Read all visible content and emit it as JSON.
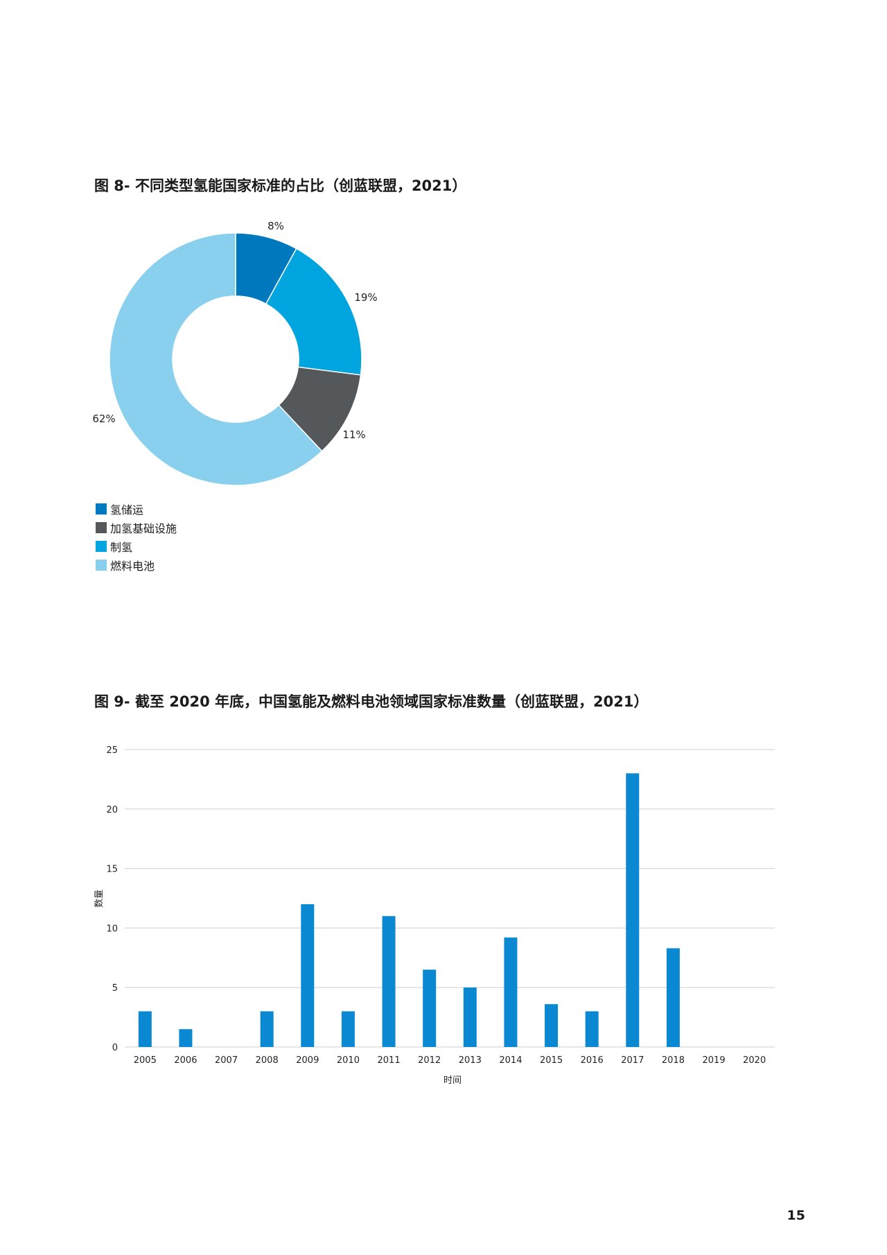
{
  "page_number": "15",
  "figures": {
    "fig8_title": "图 8- 不同类型氢能国家标准的占比（创蓝联盟，2021）",
    "fig9_title": "图 9- 截至 2020 年底，中国氢能及燃料电池领域国家标准数量（创蓝联盟，2021）"
  },
  "chart_data": [
    {
      "type": "pie",
      "donut": true,
      "title": "图 8- 不同类型氢能国家标准的占比（创蓝联盟，2021）",
      "slices": [
        {
          "name": "氢储运",
          "value": 8,
          "label": "8%",
          "color": "#0078BE"
        },
        {
          "name": "制氢",
          "value": 19,
          "label": "19%",
          "color": "#00A5DF"
        },
        {
          "name": "加氢基础设施",
          "value": 11,
          "label": "11%",
          "color": "#54585B"
        },
        {
          "name": "燃料电池",
          "value": 62,
          "label": "62%",
          "color": "#88D0EE"
        }
      ],
      "legend": [
        {
          "name": "氢储运",
          "color": "#0078BE"
        },
        {
          "name": "加氢基础设施",
          "color": "#54585B"
        },
        {
          "name": "制氢",
          "color": "#00A5DF"
        },
        {
          "name": "燃料电池",
          "color": "#88D0EE"
        }
      ],
      "legend_position": "bottom-left"
    },
    {
      "type": "bar",
      "title": "图 9- 截至 2020 年底，中国氢能及燃料电池领域国家标准数量（创蓝联盟，2021）",
      "xlabel": "时间",
      "ylabel": "数量",
      "categories": [
        "2005",
        "2006",
        "2007",
        "2008",
        "2009",
        "2010",
        "2011",
        "2012",
        "2013",
        "2014",
        "2015",
        "2016",
        "2017",
        "2018",
        "2019",
        "2020"
      ],
      "values": [
        3,
        1.5,
        0,
        3,
        12,
        3,
        11,
        6.5,
        5,
        9.2,
        3.6,
        3,
        23,
        8.3,
        0,
        0
      ],
      "ylim": [
        0,
        25
      ],
      "yticks": [
        0,
        5,
        10,
        15,
        20,
        25
      ],
      "grid": true,
      "bar_color": "#0A89D2"
    }
  ]
}
